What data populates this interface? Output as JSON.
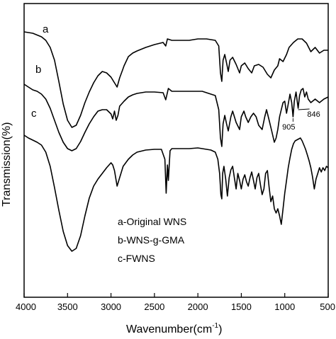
{
  "chart_data": {
    "type": "line",
    "xlabel": "Wavenumber(cm",
    "xlabel_sup": "-1",
    "xlabel_close": ")",
    "ylabel": "Transmission(%)",
    "xlim": [
      4000,
      500
    ],
    "x_ticks": [
      4000,
      3500,
      3000,
      2500,
      2000,
      1500,
      1000,
      500
    ],
    "x_tick_labels": [
      "4000",
      "3500",
      "3000",
      "2500",
      "2000",
      "1500",
      "1000",
      "500"
    ],
    "y_tick_labels": "none",
    "grid": false,
    "series": [
      {
        "name": "a",
        "points": [
          [
            4000,
            40
          ],
          [
            3900,
            42
          ],
          [
            3800,
            47
          ],
          [
            3750,
            52
          ],
          [
            3700,
            62
          ],
          [
            3650,
            80
          ],
          [
            3600,
            110
          ],
          [
            3550,
            142
          ],
          [
            3500,
            165
          ],
          [
            3450,
            175
          ],
          [
            3400,
            172
          ],
          [
            3350,
            158
          ],
          [
            3300,
            140
          ],
          [
            3250,
            125
          ],
          [
            3200,
            112
          ],
          [
            3150,
            102
          ],
          [
            3100,
            96
          ],
          [
            3050,
            98
          ],
          [
            3000,
            104
          ],
          [
            2960,
            112
          ],
          [
            2930,
            118
          ],
          [
            2900,
            105
          ],
          [
            2870,
            95
          ],
          [
            2850,
            88
          ],
          [
            2800,
            75
          ],
          [
            2750,
            70
          ],
          [
            2700,
            67
          ],
          [
            2600,
            62
          ],
          [
            2500,
            58
          ],
          [
            2400,
            55
          ],
          [
            2370,
            60
          ],
          [
            2350,
            50
          ],
          [
            2300,
            52
          ],
          [
            2200,
            52
          ],
          [
            2100,
            52
          ],
          [
            2000,
            50
          ],
          [
            1900,
            50
          ],
          [
            1800,
            52
          ],
          [
            1760,
            60
          ],
          [
            1740,
            98
          ],
          [
            1725,
            110
          ],
          [
            1710,
            80
          ],
          [
            1690,
            72
          ],
          [
            1670,
            84
          ],
          [
            1650,
            96
          ],
          [
            1630,
            80
          ],
          [
            1600,
            76
          ],
          [
            1560,
            86
          ],
          [
            1520,
            98
          ],
          [
            1500,
            88
          ],
          [
            1460,
            84
          ],
          [
            1420,
            92
          ],
          [
            1380,
            98
          ],
          [
            1350,
            88
          ],
          [
            1300,
            86
          ],
          [
            1250,
            90
          ],
          [
            1200,
            100
          ],
          [
            1160,
            105
          ],
          [
            1120,
            94
          ],
          [
            1080,
            88
          ],
          [
            1060,
            78
          ],
          [
            1020,
            82
          ],
          [
            980,
            72
          ],
          [
            950,
            62
          ],
          [
            900,
            55
          ],
          [
            850,
            50
          ],
          [
            800,
            50
          ],
          [
            750,
            56
          ],
          [
            700,
            68
          ],
          [
            650,
            62
          ],
          [
            600,
            70
          ],
          [
            550,
            66
          ],
          [
            500,
            66
          ]
        ]
      },
      {
        "name": "b",
        "points": [
          [
            4000,
            114
          ],
          [
            3950,
            118
          ],
          [
            3900,
            122
          ],
          [
            3850,
            124
          ],
          [
            3800,
            128
          ],
          [
            3750,
            135
          ],
          [
            3700,
            148
          ],
          [
            3650,
            165
          ],
          [
            3600,
            182
          ],
          [
            3550,
            196
          ],
          [
            3500,
            205
          ],
          [
            3450,
            208
          ],
          [
            3400,
            205
          ],
          [
            3350,
            195
          ],
          [
            3300,
            182
          ],
          [
            3250,
            170
          ],
          [
            3200,
            160
          ],
          [
            3150,
            152
          ],
          [
            3100,
            150
          ],
          [
            3050,
            150
          ],
          [
            3000,
            156
          ],
          [
            2980,
            163
          ],
          [
            2960,
            152
          ],
          [
            2940,
            165
          ],
          [
            2920,
            158
          ],
          [
            2900,
            145
          ],
          [
            2850,
            138
          ],
          [
            2800,
            132
          ],
          [
            2750,
            129
          ],
          [
            2700,
            127
          ],
          [
            2650,
            126
          ],
          [
            2600,
            125
          ],
          [
            2500,
            125
          ],
          [
            2400,
            126
          ],
          [
            2370,
            136
          ],
          [
            2340,
            120
          ],
          [
            2300,
            124
          ],
          [
            2200,
            124
          ],
          [
            2100,
            124
          ],
          [
            2000,
            124
          ],
          [
            1950,
            124
          ],
          [
            1900,
            126
          ],
          [
            1850,
            128
          ],
          [
            1800,
            130
          ],
          [
            1760,
            150
          ],
          [
            1740,
            190
          ],
          [
            1725,
            202
          ],
          [
            1710,
            170
          ],
          [
            1690,
            158
          ],
          [
            1670,
            170
          ],
          [
            1650,
            180
          ],
          [
            1620,
            160
          ],
          [
            1600,
            152
          ],
          [
            1560,
            168
          ],
          [
            1520,
            178
          ],
          [
            1500,
            160
          ],
          [
            1470,
            152
          ],
          [
            1450,
            160
          ],
          [
            1420,
            168
          ],
          [
            1390,
            160
          ],
          [
            1360,
            155
          ],
          [
            1330,
            160
          ],
          [
            1300,
            172
          ],
          [
            1260,
            178
          ],
          [
            1230,
            160
          ],
          [
            1210,
            150
          ],
          [
            1180,
            165
          ],
          [
            1150,
            180
          ],
          [
            1120,
            196
          ],
          [
            1100,
            190
          ],
          [
            1080,
            178
          ],
          [
            1060,
            160
          ],
          [
            1040,
            150
          ],
          [
            1020,
            140
          ],
          [
            1000,
            138
          ],
          [
            980,
            155
          ],
          [
            960,
            142
          ],
          [
            940,
            128
          ],
          [
            920,
            140
          ],
          [
            905,
            160
          ],
          [
            890,
            138
          ],
          [
            870,
            125
          ],
          [
            846,
            148
          ],
          [
            830,
            130
          ],
          [
            810,
            122
          ],
          [
            790,
            120
          ],
          [
            770,
            132
          ],
          [
            750,
            125
          ],
          [
            730,
            135
          ],
          [
            700,
            140
          ],
          [
            650,
            135
          ],
          [
            600,
            140
          ],
          [
            550,
            135
          ],
          [
            500,
            132
          ]
        ]
      },
      {
        "name": "c",
        "points": [
          [
            4000,
            186
          ],
          [
            3950,
            190
          ],
          [
            3900,
            193
          ],
          [
            3850,
            196
          ],
          [
            3800,
            200
          ],
          [
            3750,
            210
          ],
          [
            3700,
            230
          ],
          [
            3650,
            260
          ],
          [
            3600,
            292
          ],
          [
            3550,
            322
          ],
          [
            3500,
            342
          ],
          [
            3450,
            350
          ],
          [
            3400,
            346
          ],
          [
            3350,
            328
          ],
          [
            3300,
            300
          ],
          [
            3250,
            275
          ],
          [
            3200,
            258
          ],
          [
            3150,
            248
          ],
          [
            3100,
            240
          ],
          [
            3050,
            232
          ],
          [
            3000,
            225
          ],
          [
            2980,
            228
          ],
          [
            2960,
            236
          ],
          [
            2930,
            258
          ],
          [
            2900,
            246
          ],
          [
            2860,
            230
          ],
          [
            2800,
            220
          ],
          [
            2750,
            214
          ],
          [
            2700,
            210
          ],
          [
            2600,
            207
          ],
          [
            2500,
            206
          ],
          [
            2420,
            206
          ],
          [
            2380,
            220
          ],
          [
            2365,
            268
          ],
          [
            2350,
            228
          ],
          [
            2340,
            250
          ],
          [
            2320,
            208
          ],
          [
            2300,
            205
          ],
          [
            2200,
            205
          ],
          [
            2100,
            205
          ],
          [
            2000,
            204
          ],
          [
            1950,
            205
          ],
          [
            1900,
            206
          ],
          [
            1850,
            207
          ],
          [
            1800,
            210
          ],
          [
            1770,
            220
          ],
          [
            1750,
            240
          ],
          [
            1735,
            270
          ],
          [
            1725,
            276
          ],
          [
            1715,
            240
          ],
          [
            1700,
            230
          ],
          [
            1680,
            248
          ],
          [
            1660,
            272
          ],
          [
            1640,
            246
          ],
          [
            1620,
            235
          ],
          [
            1600,
            230
          ],
          [
            1580,
            246
          ],
          [
            1560,
            262
          ],
          [
            1540,
            240
          ],
          [
            1520,
            250
          ],
          [
            1500,
            262
          ],
          [
            1480,
            248
          ],
          [
            1460,
            242
          ],
          [
            1440,
            252
          ],
          [
            1420,
            258
          ],
          [
            1400,
            246
          ],
          [
            1380,
            238
          ],
          [
            1360,
            250
          ],
          [
            1340,
            262
          ],
          [
            1320,
            246
          ],
          [
            1300,
            240
          ],
          [
            1280,
            256
          ],
          [
            1260,
            270
          ],
          [
            1240,
            262
          ],
          [
            1220,
            240
          ],
          [
            1200,
            236
          ],
          [
            1180,
            260
          ],
          [
            1160,
            280
          ],
          [
            1140,
            272
          ],
          [
            1120,
            290
          ],
          [
            1100,
            296
          ],
          [
            1080,
            290
          ],
          [
            1060,
            300
          ],
          [
            1040,
            312
          ],
          [
            1020,
            290
          ],
          [
            1000,
            268
          ],
          [
            980,
            250
          ],
          [
            960,
            232
          ],
          [
            940,
            218
          ],
          [
            920,
            206
          ],
          [
            900,
            198
          ],
          [
            880,
            194
          ],
          [
            850,
            192
          ],
          [
            820,
            190
          ],
          [
            800,
            194
          ],
          [
            780,
            200
          ],
          [
            760,
            206
          ],
          [
            740,
            214
          ],
          [
            720,
            222
          ],
          [
            700,
            232
          ],
          [
            680,
            245
          ],
          [
            660,
            262
          ],
          [
            640,
            248
          ],
          [
            620,
            240
          ],
          [
            600,
            232
          ],
          [
            580,
            238
          ],
          [
            560,
            232
          ],
          [
            540,
            236
          ],
          [
            520,
            230
          ],
          [
            500,
            232
          ]
        ]
      }
    ],
    "curve_tags": [
      "a",
      "b",
      "c"
    ],
    "legend": [
      "a-Original WNS",
      "b-WNS-g-GMA",
      "c-FWNS"
    ],
    "annotations": [
      {
        "text": "905",
        "x": 905
      },
      {
        "text": "846",
        "x": 846
      }
    ]
  }
}
